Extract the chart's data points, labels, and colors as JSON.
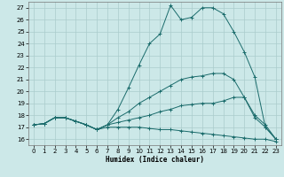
{
  "xlabel": "Humidex (Indice chaleur)",
  "xlim": [
    -0.5,
    23.5
  ],
  "ylim": [
    15.5,
    27.5
  ],
  "xticks": [
    0,
    1,
    2,
    3,
    4,
    5,
    6,
    7,
    8,
    9,
    10,
    11,
    12,
    13,
    14,
    15,
    16,
    17,
    18,
    19,
    20,
    21,
    22,
    23
  ],
  "yticks": [
    16,
    17,
    18,
    19,
    20,
    21,
    22,
    23,
    24,
    25,
    26,
    27
  ],
  "bg": "#cce8e8",
  "grid_color": "#aacccc",
  "lc": "#1a6b6b",
  "line1_y": [
    17.2,
    17.3,
    17.8,
    17.8,
    17.5,
    17.2,
    16.8,
    17.2,
    18.5,
    20.3,
    22.2,
    24.0,
    24.8,
    27.2,
    26.0,
    26.2,
    27.0,
    27.0,
    26.5,
    25.0,
    23.3,
    21.2,
    17.0,
    16.0
  ],
  "line2_y": [
    17.2,
    17.3,
    17.8,
    17.8,
    17.5,
    17.2,
    16.8,
    17.2,
    17.8,
    18.3,
    19.0,
    19.5,
    20.0,
    20.5,
    21.0,
    21.2,
    21.3,
    21.5,
    21.5,
    21.0,
    19.5,
    17.8,
    17.0,
    16.0
  ],
  "line3_y": [
    17.2,
    17.3,
    17.8,
    17.8,
    17.5,
    17.2,
    16.8,
    17.2,
    17.4,
    17.6,
    17.8,
    18.0,
    18.3,
    18.5,
    18.8,
    18.9,
    19.0,
    19.0,
    19.2,
    19.5,
    19.5,
    18.0,
    17.2,
    16.0
  ],
  "line4_y": [
    17.2,
    17.3,
    17.8,
    17.8,
    17.5,
    17.2,
    16.8,
    17.0,
    17.0,
    17.0,
    17.0,
    16.9,
    16.8,
    16.8,
    16.7,
    16.6,
    16.5,
    16.4,
    16.3,
    16.2,
    16.1,
    16.0,
    16.0,
    15.8
  ]
}
